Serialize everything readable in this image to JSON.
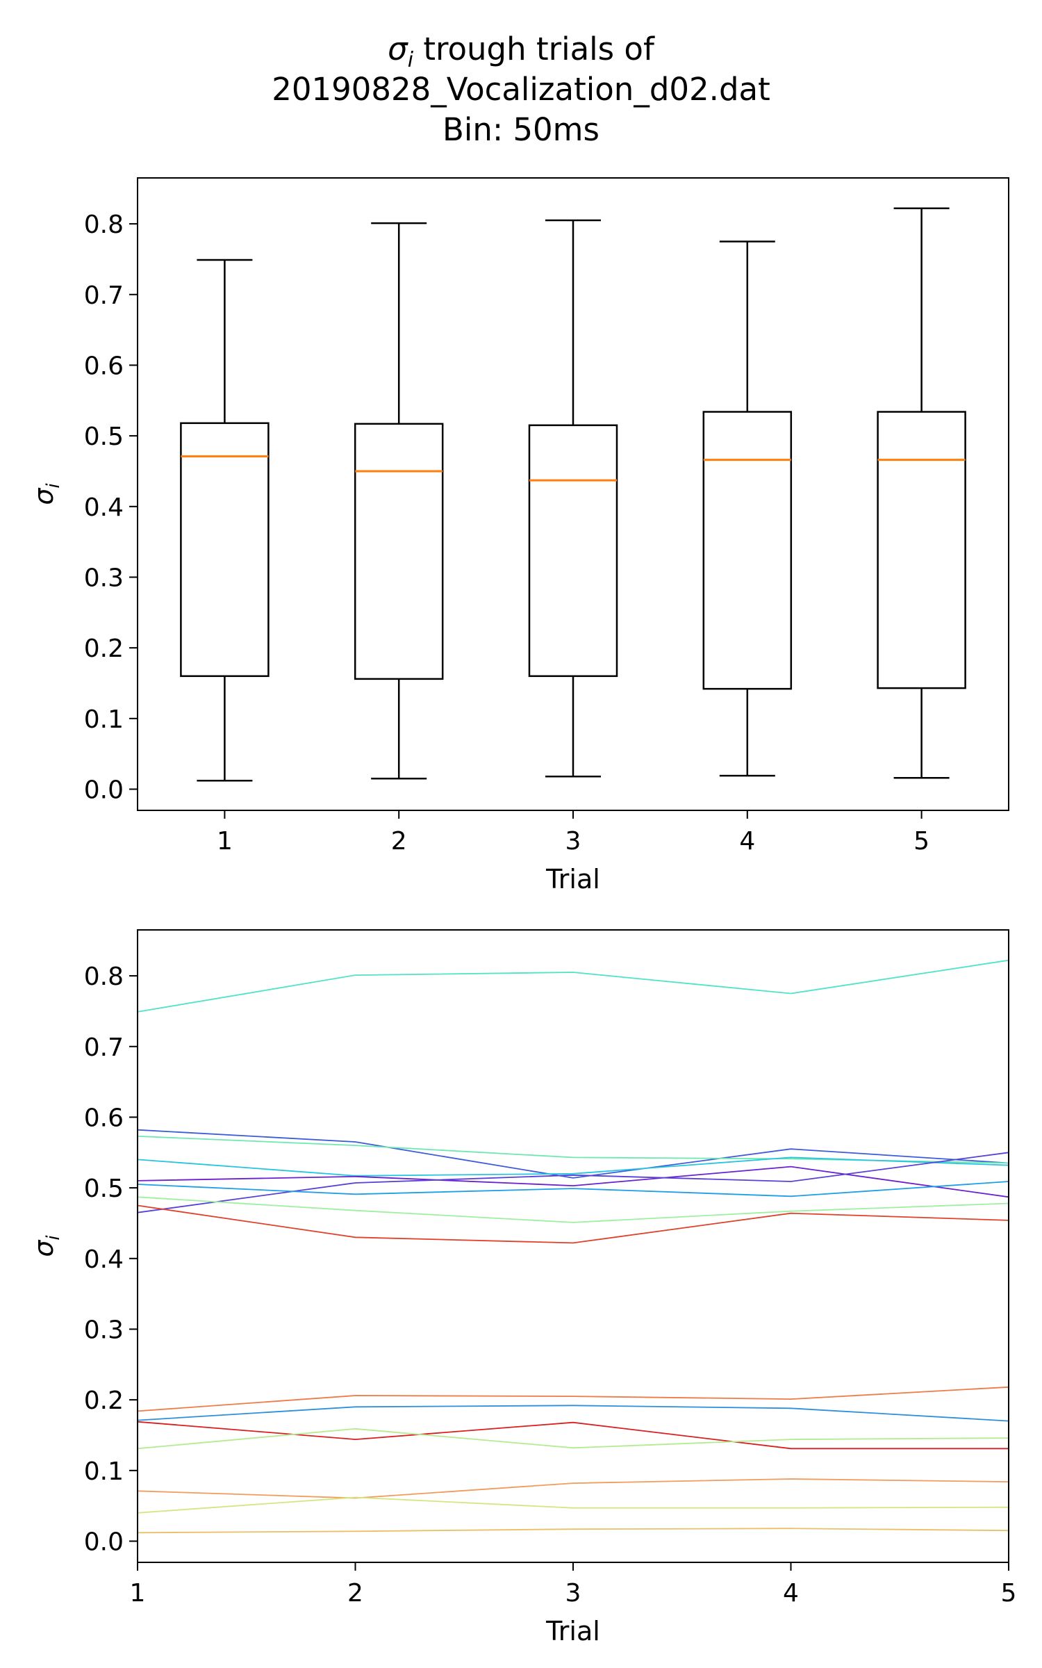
{
  "figure": {
    "title_sigma": "σ",
    "title_sub": "i",
    "title_line1_rest": " trough trials of",
    "title_line2": "20190828_Vocalization_d02.dat",
    "title_line3": "Bin: 50ms"
  },
  "chart_data": [
    {
      "type": "box",
      "xlabel": "Trial",
      "ylabel_symbol": "σ",
      "ylabel_sub": "i",
      "categories": [
        "1",
        "2",
        "3",
        "4",
        "5"
      ],
      "ylim": [
        -0.03,
        0.865
      ],
      "yticks": [
        "0.0",
        "0.1",
        "0.2",
        "0.3",
        "0.4",
        "0.5",
        "0.6",
        "0.7",
        "0.8"
      ],
      "colors": {
        "box": "#000000",
        "median": "#ff7f0e"
      },
      "boxes": [
        {
          "trial": "1",
          "whislo": 0.012,
          "q1": 0.16,
          "med": 0.471,
          "q3": 0.518,
          "whishi": 0.749
        },
        {
          "trial": "2",
          "whislo": 0.015,
          "q1": 0.156,
          "med": 0.45,
          "q3": 0.517,
          "whishi": 0.801
        },
        {
          "trial": "3",
          "whislo": 0.018,
          "q1": 0.16,
          "med": 0.437,
          "q3": 0.515,
          "whishi": 0.805
        },
        {
          "trial": "4",
          "whislo": 0.019,
          "q1": 0.142,
          "med": 0.466,
          "q3": 0.534,
          "whishi": 0.775
        },
        {
          "trial": "5",
          "whislo": 0.016,
          "q1": 0.143,
          "med": 0.466,
          "q3": 0.534,
          "whishi": 0.822
        }
      ]
    },
    {
      "type": "line",
      "xlabel": "Trial",
      "ylabel_symbol": "σ",
      "ylabel_sub": "i",
      "x": [
        1,
        2,
        3,
        4,
        5
      ],
      "xticks": [
        "1",
        "2",
        "3",
        "4",
        "5"
      ],
      "xlim": [
        1,
        5
      ],
      "ylim": [
        -0.03,
        0.865
      ],
      "yticks": [
        "0.0",
        "0.1",
        "0.2",
        "0.3",
        "0.4",
        "0.5",
        "0.6",
        "0.7",
        "0.8"
      ],
      "series": [
        {
          "color": "#4fe3c7",
          "values": [
            0.749,
            0.801,
            0.805,
            0.775,
            0.822
          ]
        },
        {
          "color": "#3b5bdc",
          "values": [
            0.582,
            0.565,
            0.514,
            0.555,
            0.535
          ]
        },
        {
          "color": "#6de8b0",
          "values": [
            0.573,
            0.56,
            0.543,
            0.541,
            0.535
          ]
        },
        {
          "color": "#27c4e0",
          "values": [
            0.54,
            0.517,
            0.52,
            0.543,
            0.532
          ]
        },
        {
          "color": "#6a1fd0",
          "values": [
            0.51,
            0.516,
            0.503,
            0.53,
            0.487
          ]
        },
        {
          "color": "#5640d8",
          "values": [
            0.465,
            0.507,
            0.518,
            0.509,
            0.55
          ]
        },
        {
          "color": "#1d9ee8",
          "values": [
            0.505,
            0.491,
            0.499,
            0.488,
            0.509
          ]
        },
        {
          "color": "#9ef0a0",
          "values": [
            0.487,
            0.468,
            0.451,
            0.467,
            0.478
          ]
        },
        {
          "color": "#e0402a",
          "values": [
            0.475,
            0.43,
            0.422,
            0.464,
            0.454
          ]
        },
        {
          "color": "#f07a48",
          "values": [
            0.184,
            0.206,
            0.205,
            0.201,
            0.218
          ]
        },
        {
          "color": "#2b8fe0",
          "values": [
            0.171,
            0.19,
            0.192,
            0.188,
            0.17
          ]
        },
        {
          "color": "#d81e1e",
          "values": [
            0.169,
            0.144,
            0.168,
            0.131,
            0.131
          ]
        },
        {
          "color": "#b2ec90",
          "values": [
            0.131,
            0.159,
            0.132,
            0.144,
            0.146
          ]
        },
        {
          "color": "#f39a5c",
          "values": [
            0.071,
            0.061,
            0.082,
            0.088,
            0.084
          ]
        },
        {
          "color": "#d4e680",
          "values": [
            0.04,
            0.062,
            0.047,
            0.047,
            0.048
          ]
        },
        {
          "color": "#e8c068",
          "values": [
            0.012,
            0.014,
            0.017,
            0.018,
            0.015
          ]
        }
      ]
    }
  ]
}
